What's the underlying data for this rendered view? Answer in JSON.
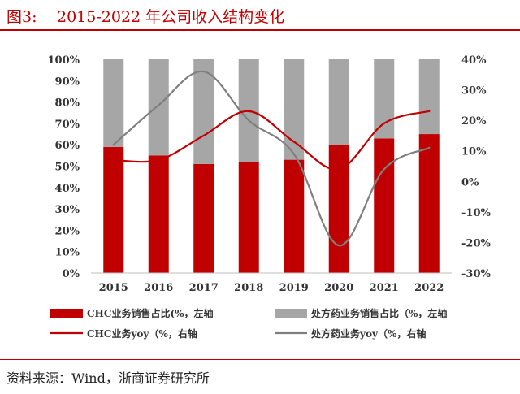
{
  "figure": {
    "label": "图3:",
    "title": "2015-2022 年公司收入结构变化",
    "source": "资料来源：Wind，浙商证券研究所"
  },
  "colors": {
    "chc_bar": "#c00000",
    "rx_bar": "#a6a6a6",
    "chc_line": "#c00000",
    "rx_line": "#7f7f7f",
    "title": "#c00000"
  },
  "chart_data": {
    "type": "bar",
    "categories": [
      "2015",
      "2016",
      "2017",
      "2018",
      "2019",
      "2020",
      "2021",
      "2022"
    ],
    "ylim_left": [
      0,
      100
    ],
    "yticks_left": [
      "0%",
      "10%",
      "20%",
      "30%",
      "40%",
      "50%",
      "60%",
      "70%",
      "80%",
      "90%",
      "100%"
    ],
    "ylim_right": [
      -30,
      40
    ],
    "yticks_right": [
      "-30%",
      "-20%",
      "-10%",
      "0%",
      "10%",
      "20%",
      "30%",
      "40%"
    ],
    "stacked": true,
    "grid": false,
    "legend_position": "bottom",
    "series": [
      {
        "name": "CHC业务销售占比(%，左轴",
        "type": "bar",
        "axis": "left",
        "values": [
          59,
          55,
          51,
          52,
          53,
          60,
          63,
          65
        ]
      },
      {
        "name": "处方药业务销售占比（%，左轴",
        "type": "bar",
        "axis": "left",
        "values": [
          41,
          45,
          49,
          48,
          47,
          40,
          37,
          35
        ]
      },
      {
        "name": "CHC业务yoy（%，右轴",
        "type": "line",
        "axis": "right",
        "values": [
          7,
          7,
          15,
          23,
          13,
          4,
          19,
          23
        ]
      },
      {
        "name": "处方药业务yoy（%，右轴",
        "type": "line",
        "axis": "right",
        "values": [
          12,
          25,
          36,
          20,
          9,
          -21,
          4,
          11
        ]
      }
    ]
  }
}
